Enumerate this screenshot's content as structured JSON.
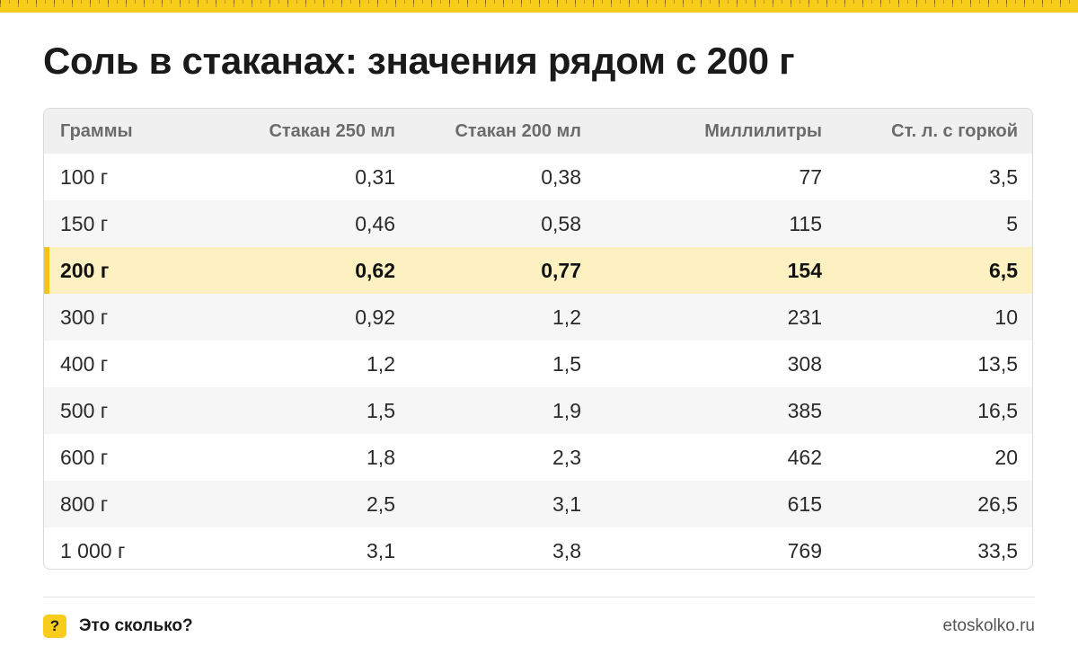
{
  "title": "Соль в стаканах: значения рядом с 200 г",
  "table": {
    "headers": [
      "Граммы",
      "Стакан 250 мл",
      "Стакан 200 мл",
      "Миллилитры",
      "Ст. л. с горкой"
    ],
    "highlighted_row": 2,
    "rows": [
      [
        "100 г",
        "0,31",
        "0,38",
        "77",
        "3,5"
      ],
      [
        "150 г",
        "0,46",
        "0,58",
        "115",
        "5"
      ],
      [
        "200 г",
        "0,62",
        "0,77",
        "154",
        "6,5"
      ],
      [
        "300 г",
        "0,92",
        "1,2",
        "231",
        "10"
      ],
      [
        "400 г",
        "1,2",
        "1,5",
        "308",
        "13,5"
      ],
      [
        "500 г",
        "1,5",
        "1,9",
        "385",
        "16,5"
      ],
      [
        "600 г",
        "1,8",
        "2,3",
        "462",
        "20"
      ],
      [
        "800 г",
        "2,5",
        "3,1",
        "615",
        "26,5"
      ],
      [
        "1 000 г",
        "3,1",
        "3,8",
        "769",
        "33,5"
      ]
    ]
  },
  "footer": {
    "badge": "?",
    "brand": "Это сколько?",
    "site": "etoskolko.ru"
  },
  "colors": {
    "accent": "#f7cc1b",
    "highlight_row": "#fdf1c2"
  }
}
